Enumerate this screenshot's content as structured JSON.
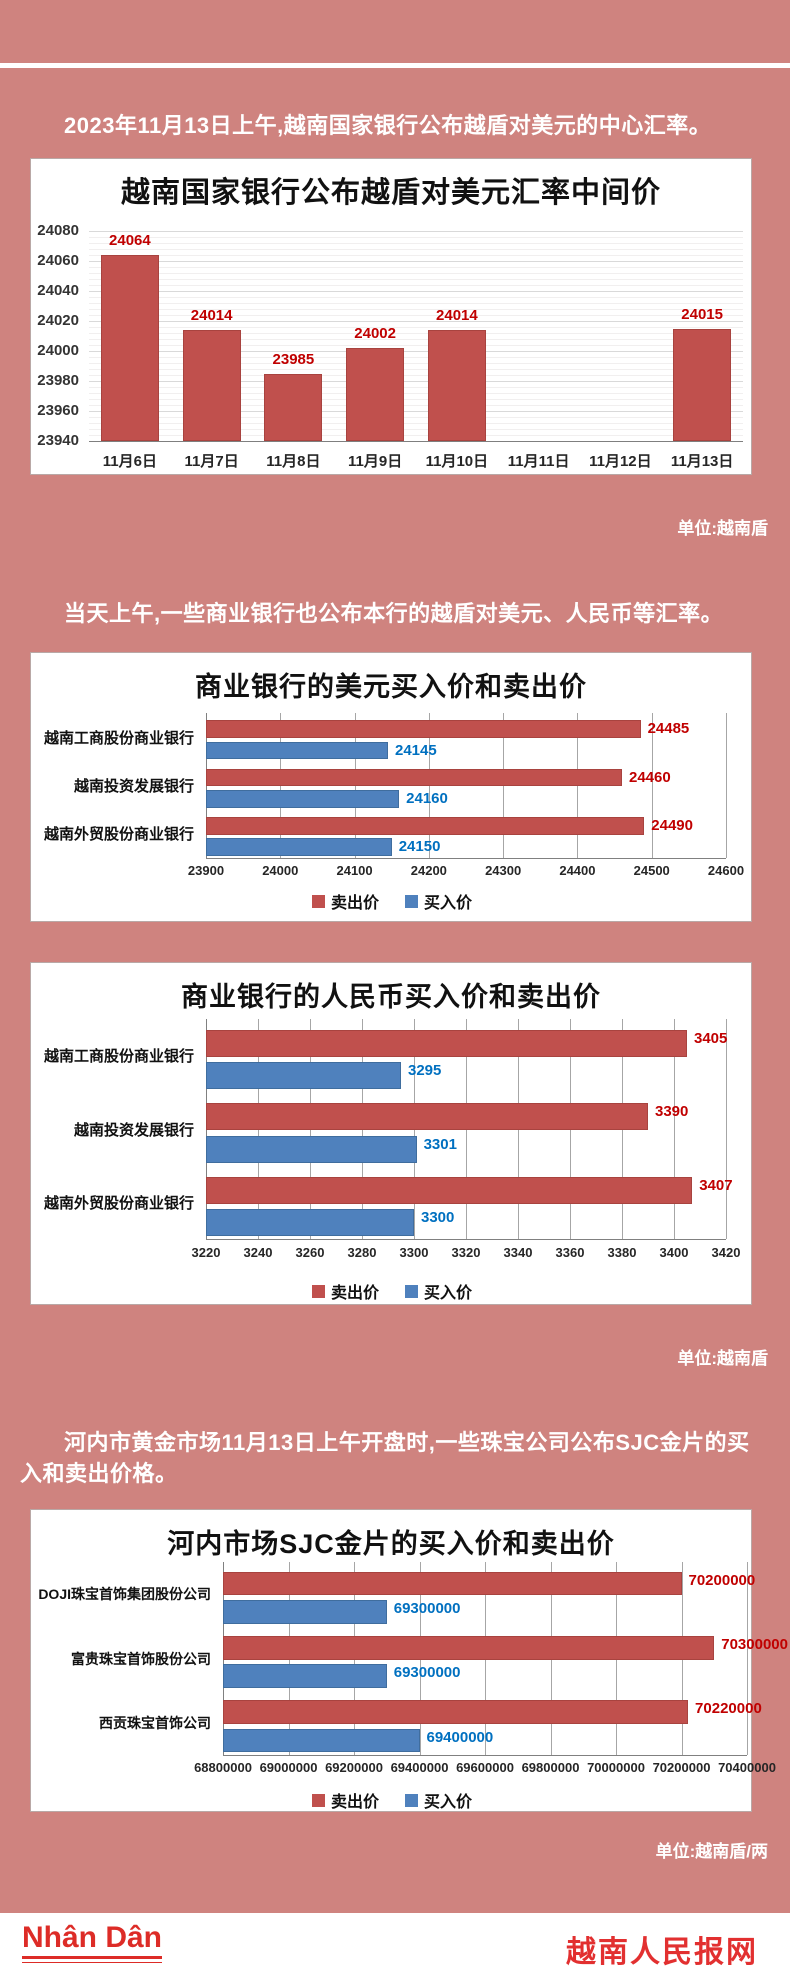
{
  "texts": {
    "intro1": "2023年11月13日上午,越南国家银行公布越盾对美元的中心汇率。",
    "intro2": "当天上午,一些商业银行也公布本行的越盾对美元、人民币等汇率。",
    "intro3": "河内市黄金市场11月13日上午开盘时,一些珠宝公司公布SJC金片的买入和卖出价格。",
    "unit1": "单位:越南盾",
    "unit2": "单位:越南盾",
    "unit3": "单位:越南盾/两"
  },
  "footer": {
    "logo": "Nhân Dân",
    "site_name": "越南人民报网"
  },
  "colors": {
    "background": "#cf837f",
    "sell_bar": "#c0504d",
    "buy_bar": "#4f81bd",
    "sell_label": "#c00000",
    "buy_label": "#0070c0",
    "axis_text": "#262626",
    "grid": "#a6a6a6"
  },
  "chart_data": [
    {
      "type": "bar",
      "title": "越南国家银行公布越盾对美元汇率中间价",
      "categories": [
        "11月6日",
        "11月7日",
        "11月8日",
        "11月9日",
        "11月10日",
        "11月11日",
        "11月12日",
        "11月13日"
      ],
      "values": [
        24064,
        24014,
        23985,
        24002,
        24014,
        null,
        null,
        24015
      ],
      "ylim": [
        23940,
        24080
      ],
      "ytick_step": 20,
      "grid": "on",
      "bar_color": "#c0504d",
      "label_color": "#c00000"
    },
    {
      "type": "bar",
      "orientation": "horizontal",
      "title": "商业银行的美元买入价和卖出价",
      "categories": [
        "越南工商股份商业银行",
        "越南投资发展银行",
        "越南外贸股份商业银行"
      ],
      "series": [
        {
          "name": "卖出价",
          "color": "#c0504d",
          "label_color": "#c00000",
          "values": [
            24485,
            24460,
            24490
          ]
        },
        {
          "name": "买入价",
          "color": "#4f81bd",
          "label_color": "#0070c0",
          "values": [
            24145,
            24160,
            24150
          ]
        }
      ],
      "xlim": [
        23900,
        24600
      ],
      "xtick_step": 100,
      "grid": "on",
      "legend_position": "bottom"
    },
    {
      "type": "bar",
      "orientation": "horizontal",
      "title": "商业银行的人民币买入价和卖出价",
      "categories": [
        "越南工商股份商业银行",
        "越南投资发展银行",
        "越南外贸股份商业银行"
      ],
      "series": [
        {
          "name": "卖出价",
          "color": "#c0504d",
          "label_color": "#c00000",
          "values": [
            3405,
            3390,
            3407
          ]
        },
        {
          "name": "买入价",
          "color": "#4f81bd",
          "label_color": "#0070c0",
          "values": [
            3295,
            3301,
            3300
          ]
        }
      ],
      "xlim": [
        3220,
        3420
      ],
      "xtick_step": 20,
      "grid": "on",
      "legend_position": "bottom"
    },
    {
      "type": "bar",
      "orientation": "horizontal",
      "title": "河内市场SJC金片的买入价和卖出价",
      "categories": [
        "DOJI珠宝首饰集团股份公司",
        "富贵珠宝首饰股份公司",
        "西贡珠宝首饰公司"
      ],
      "series": [
        {
          "name": "卖出价",
          "color": "#c0504d",
          "label_color": "#c00000",
          "values": [
            70200000,
            70300000,
            70220000
          ]
        },
        {
          "name": "买入价",
          "color": "#4f81bd",
          "label_color": "#0070c0",
          "values": [
            69300000,
            69300000,
            69400000
          ]
        }
      ],
      "xlim": [
        68800000,
        70400000
      ],
      "xtick_step": 200000,
      "grid": "on",
      "legend_position": "bottom"
    }
  ]
}
